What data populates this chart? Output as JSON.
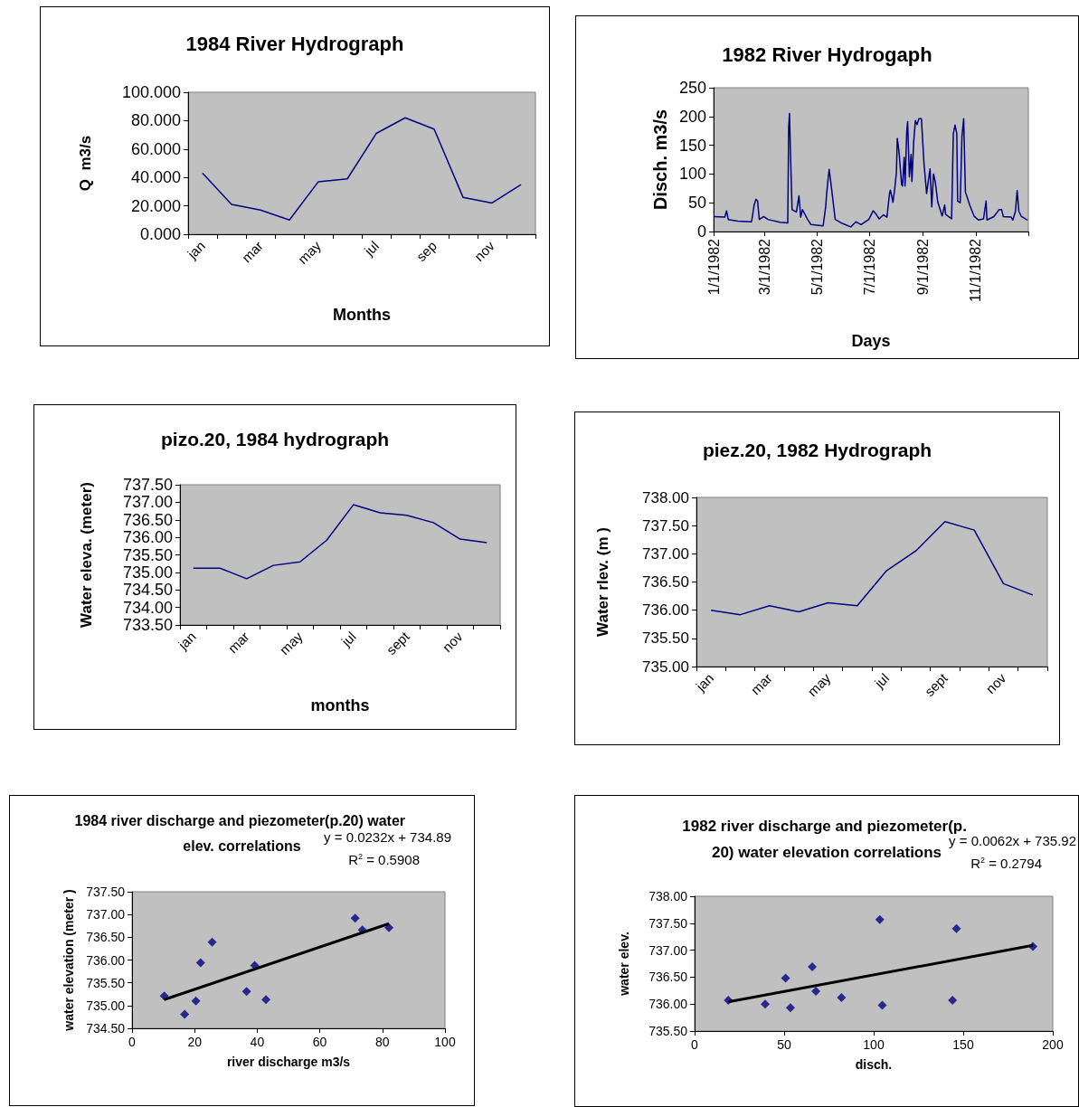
{
  "chart_data": [
    {
      "type": "line",
      "title": "1984 River Hydrograph",
      "xlabel": "Months",
      "ylabel": "Q  m3/s",
      "categories": [
        "jan",
        null,
        "mar",
        null,
        "may",
        null,
        "jul",
        null,
        "sep",
        null,
        "nov",
        null
      ],
      "values": [
        43,
        21,
        17,
        10,
        37,
        39,
        71,
        82,
        74,
        26,
        22,
        35
      ],
      "color": "#000080",
      "marker": "none",
      "ylim": [
        0,
        100
      ],
      "yticks": [
        {
          "value": 0,
          "label": "0.000"
        },
        {
          "value": 20,
          "label": "20.000"
        },
        {
          "value": 40,
          "label": "40.000"
        },
        {
          "value": 60,
          "label": "60.000"
        },
        {
          "value": 80,
          "label": "80.000"
        },
        {
          "value": 100,
          "label": "100.000"
        }
      ]
    },
    {
      "type": "line",
      "title": "1982 River Hydrogaph",
      "xlabel": "Days",
      "ylabel": "Disch. m3/s",
      "color": "#000080",
      "marker": "none",
      "x": [
        "1982-01-01",
        "1982-01-14",
        "1982-01-16",
        "1982-01-18",
        "1982-01-29",
        "1982-02-14",
        "1982-02-17",
        "1982-02-19",
        "1982-02-21",
        "1982-02-23",
        "1982-02-28",
        "1982-03-05",
        "1982-03-19",
        "1982-03-28",
        "1982-03-29",
        "1982-03-30",
        "1982-03-31",
        "1982-04-02",
        "1982-04-07",
        "1982-04-10",
        "1982-04-12",
        "1982-04-14",
        "1982-04-20",
        "1982-04-24",
        "1982-05-08",
        "1982-05-11",
        "1982-05-12",
        "1982-05-14",
        "1982-05-15",
        "1982-05-18",
        "1982-05-22",
        "1982-05-29",
        "1982-06-09",
        "1982-06-15",
        "1982-06-21",
        "1982-06-30",
        "1982-07-05",
        "1982-07-08",
        "1982-07-12",
        "1982-07-17",
        "1982-07-21",
        "1982-07-24",
        "1982-07-25",
        "1982-07-28",
        "1982-07-30",
        "1982-08-01",
        "1982-08-02",
        "1982-08-04",
        "1982-08-07",
        "1982-08-08",
        "1982-08-10",
        "1982-08-11",
        "1982-08-13",
        "1982-08-14",
        "1982-08-16",
        "1982-08-18",
        "1982-08-19",
        "1982-08-21",
        "1982-08-23",
        "1982-08-25",
        "1982-08-27",
        "1982-08-30",
        "1982-09-02",
        "1982-09-05",
        "1982-09-09",
        "1982-09-11",
        "1982-09-13",
        "1982-09-15",
        "1982-09-18",
        "1982-09-23",
        "1982-09-26",
        "1982-09-27",
        "1982-10-04",
        "1982-10-06",
        "1982-10-08",
        "1982-10-10",
        "1982-10-11",
        "1982-10-14",
        "1982-10-16",
        "1982-10-18",
        "1982-10-20",
        "1982-10-25",
        "1982-10-30",
        "1982-11-04",
        "1982-11-10",
        "1982-11-13",
        "1982-11-14",
        "1982-11-22",
        "1982-11-28",
        "1982-12-01",
        "1982-12-03",
        "1982-12-12",
        "1982-12-14",
        "1982-12-17",
        "1982-12-19",
        "1982-12-21",
        "1982-12-24",
        "1982-12-31"
      ],
      "values": [
        26,
        25,
        36,
        21,
        18,
        17,
        46,
        56,
        53,
        21,
        26,
        21,
        16,
        15,
        180,
        205,
        144,
        38,
        34,
        62,
        25,
        38,
        21,
        12,
        10,
        43,
        64,
        95,
        108,
        72,
        21,
        15,
        8,
        17,
        12,
        21,
        36,
        31,
        22,
        29,
        25,
        66,
        72,
        51,
        74,
        103,
        162,
        139,
        82,
        79,
        129,
        79,
        175,
        191,
        95,
        134,
        87,
        155,
        193,
        186,
        196,
        196,
        118,
        66,
        109,
        43,
        100,
        87,
        51,
        27,
        46,
        30,
        22,
        170,
        185,
        170,
        53,
        50,
        165,
        196,
        69,
        46,
        27,
        20,
        22,
        53,
        20,
        26,
        38,
        38,
        26,
        25,
        20,
        35,
        71,
        35,
        26,
        20
      ],
      "xlim": [
        "1982-01-01",
        "1983-01-01"
      ],
      "xticks": [
        {
          "value": "1982-01-01",
          "label": "1/1/1982"
        },
        {
          "value": "1982-03-01",
          "label": "3/1/1982"
        },
        {
          "value": "1982-05-01",
          "label": "5/1/1982"
        },
        {
          "value": "1982-07-01",
          "label": "7/1/1982"
        },
        {
          "value": "1982-09-01",
          "label": "9/1/1982"
        },
        {
          "value": "1982-11-01",
          "label": "11/1/1982"
        },
        {
          "value": "1983-01-01",
          "label": null
        }
      ],
      "ylim": [
        0,
        250
      ],
      "yticks": [
        0,
        50,
        100,
        150,
        200,
        250
      ]
    },
    {
      "type": "line",
      "title": "pizo.20, 1984 hydrograph",
      "xlabel": "months",
      "ylabel": "Water eleva. (meter)",
      "categories": [
        "jan",
        null,
        "mar",
        null,
        "may",
        null,
        "jul",
        null,
        "sept",
        null,
        "nov",
        null
      ],
      "values": [
        735.12,
        735.12,
        734.82,
        735.2,
        735.3,
        735.92,
        736.93,
        736.7,
        736.63,
        736.42,
        735.95,
        735.85
      ],
      "color": "#000080",
      "marker": "none",
      "ylim": [
        733.5,
        737.5
      ],
      "yticks": [
        {
          "value": 733.5,
          "label": "733.50"
        },
        {
          "value": 734,
          "label": "734.00"
        },
        {
          "value": 734.5,
          "label": "734.50"
        },
        {
          "value": 735,
          "label": "735.00"
        },
        {
          "value": 735.5,
          "label": "735.50"
        },
        {
          "value": 736,
          "label": "736.00"
        },
        {
          "value": 736.5,
          "label": "736.50"
        },
        {
          "value": 737,
          "label": "737.00"
        },
        {
          "value": 737.5,
          "label": "737.50"
        }
      ]
    },
    {
      "type": "line",
      "title": "piez.20, 1982 Hydrograph",
      "ylabel": "Water rlev. (m )",
      "categories": [
        "jan",
        null,
        "mar",
        null,
        "may",
        null,
        "jul",
        null,
        "sept",
        null,
        "nov",
        null
      ],
      "values": [
        736.0,
        735.92,
        736.08,
        735.97,
        736.13,
        736.08,
        736.7,
        737.05,
        737.57,
        737.42,
        736.47,
        736.27
      ],
      "color": "#000080",
      "marker": "none",
      "ylim": [
        735,
        738
      ],
      "yticks": [
        {
          "value": 735,
          "label": "735.00"
        },
        {
          "value": 735.5,
          "label": "735.50"
        },
        {
          "value": 736,
          "label": "736.00"
        },
        {
          "value": 736.5,
          "label": "736.50"
        },
        {
          "value": 737,
          "label": "737.00"
        },
        {
          "value": 737.5,
          "label": "737.50"
        },
        {
          "value": 738,
          "label": "738.00"
        }
      ]
    },
    {
      "type": "scatter",
      "title": "1984 river discharge and piezometer(p.20) water elev. correlations",
      "xlabel": "river discharge m3/s",
      "ylabel": "water elevation (meter )",
      "marker": "diamond",
      "annotations": [
        "y = 0.0232x + 734.89",
        "R$^{2}$ = 0.5908"
      ],
      "series": [
        {
          "color": "#000080",
          "x": [
            10.3,
            16.8,
            20.4,
            21.9,
            25.6,
            36.6,
            39.2,
            42.8,
            71.3,
            73.6,
            82.1
          ],
          "values": [
            735.21,
            734.81,
            735.1,
            735.94,
            736.39,
            735.31,
            735.88,
            735.13,
            736.92,
            736.66,
            736.71
          ]
        },
        {
          "type": "line",
          "color": "#000000",
          "marker": "none",
          "x": [
            10.3,
            82.1
          ],
          "values": [
            735.13,
            736.8
          ]
        }
      ],
      "xlim": [
        0,
        100
      ],
      "xticks": [
        0,
        20,
        40,
        60,
        80,
        100
      ],
      "ylim": [
        734.5,
        737.5
      ],
      "yticks": [
        {
          "value": 734.5,
          "label": "734.50"
        },
        {
          "value": 735,
          "label": "735.00"
        },
        {
          "value": 735.5,
          "label": "735.50"
        },
        {
          "value": 736,
          "label": "736.00"
        },
        {
          "value": 736.5,
          "label": "736.50"
        },
        {
          "value": 737,
          "label": "737.00"
        },
        {
          "value": 737.5,
          "label": "737.50"
        }
      ]
    },
    {
      "type": "scatter",
      "title": "1982 river discharge and piezometer(p. 20) water elevation correlations",
      "xlabel": "disch.",
      "ylabel": "water elev.",
      "marker": "diamond",
      "annotations": [
        "y = 0.0062x + 735.92",
        "R$^{2}$ = 0.2794"
      ],
      "series": [
        {
          "color": "#000080",
          "x": [
            18.8,
            39.4,
            50.8,
            53.5,
            65.7,
            67.7,
            82.0,
            103.4,
            104.8,
            144.0,
            146.2,
            188.9
          ],
          "values": [
            736.07,
            736.0,
            736.48,
            735.93,
            736.69,
            736.24,
            736.12,
            737.57,
            735.98,
            736.07,
            737.4,
            737.07
          ]
        },
        {
          "type": "line",
          "color": "#000000",
          "marker": "none",
          "x": [
            18.8,
            188.9
          ],
          "values": [
            736.04,
            737.09
          ]
        }
      ],
      "xlim": [
        0,
        200
      ],
      "xticks": [
        0,
        50,
        100,
        150,
        200
      ],
      "ylim": [
        735.5,
        738
      ],
      "yticks": [
        {
          "value": 735.5,
          "label": "735.50"
        },
        {
          "value": 736,
          "label": "736.00"
        },
        {
          "value": 736.5,
          "label": "736.50"
        },
        {
          "value": 737,
          "label": "737.00"
        },
        {
          "value": 737.5,
          "label": "737.50"
        },
        {
          "value": 738,
          "label": "738.00"
        }
      ]
    }
  ]
}
